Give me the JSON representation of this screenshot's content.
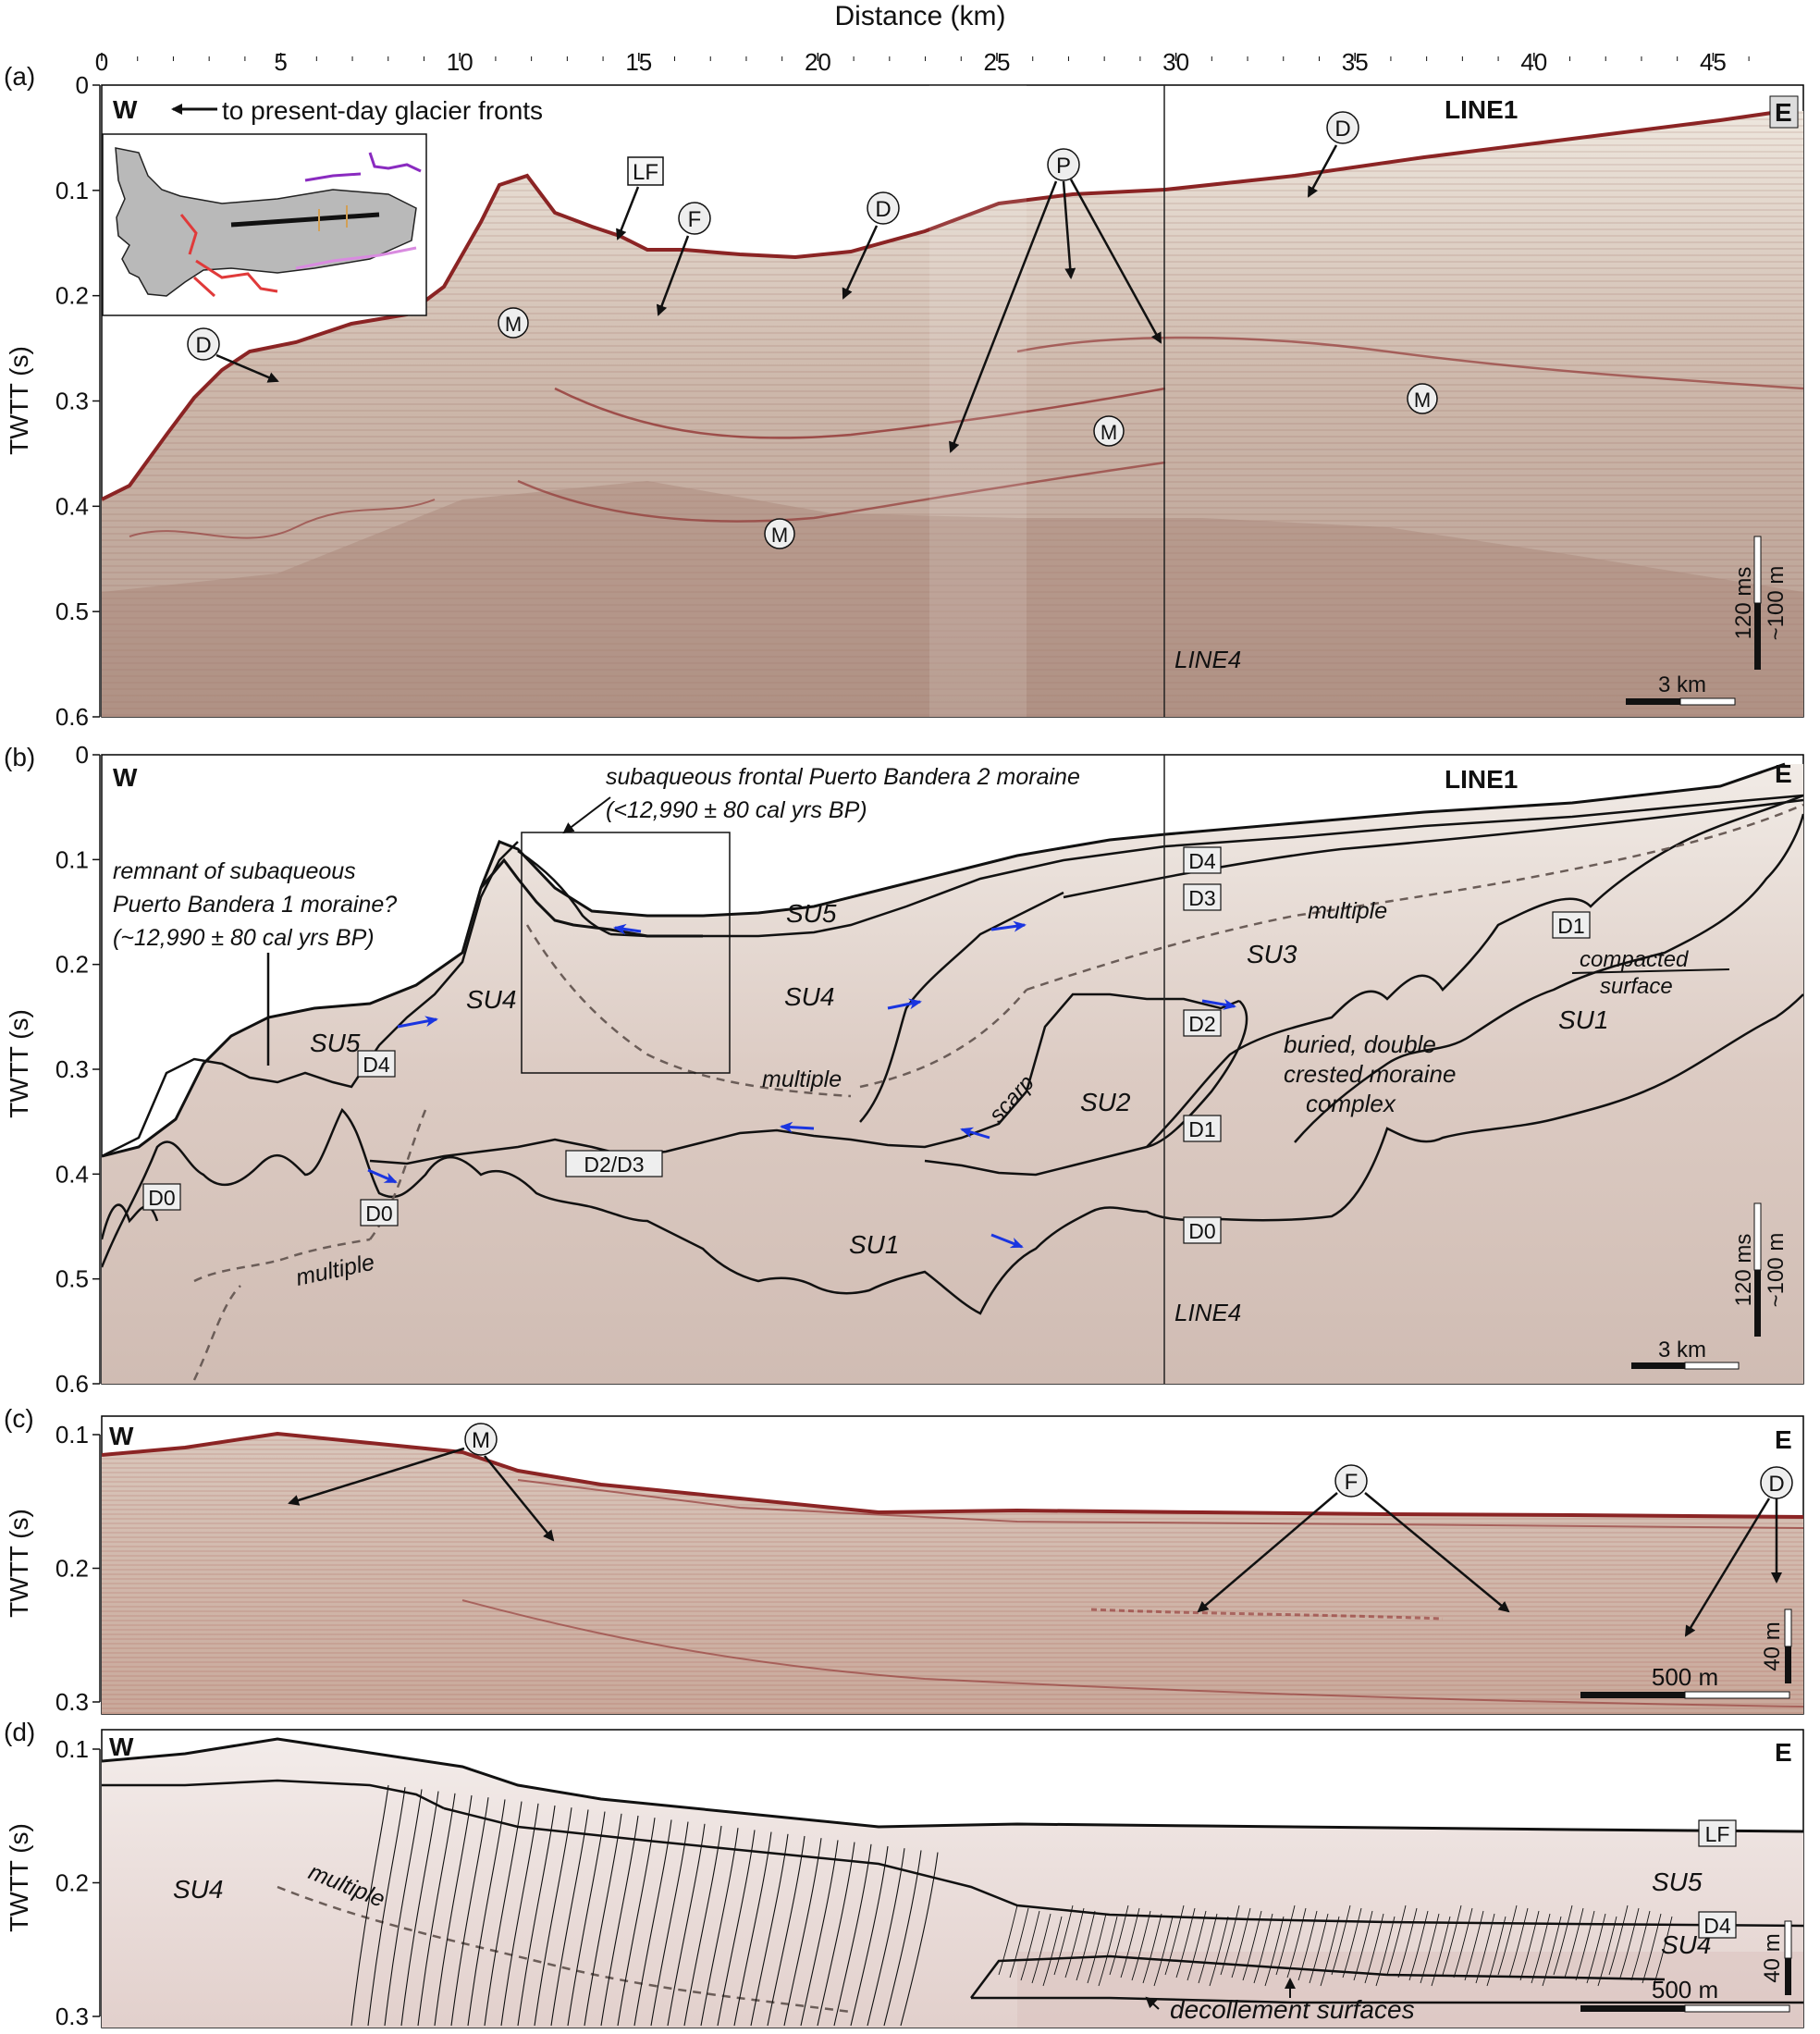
{
  "top_axis": {
    "title": "Distance (km)",
    "ticks": [
      "0",
      "5",
      "10",
      "15",
      "20",
      "25",
      "30",
      "35",
      "40",
      "45"
    ]
  },
  "panel_a": {
    "letter": "(a)",
    "ylabel": "TWTT (s)",
    "yticks": [
      "0",
      "0.1",
      "0.2",
      "0.3",
      "0.4",
      "0.5",
      "0.6"
    ],
    "west": "W",
    "east": "E",
    "west_note": "to present-day glacier fronts",
    "line_label": "LINE1",
    "crossing_line": "LINE4",
    "labels": {
      "lf": "LF",
      "d": "D",
      "f": "F",
      "p": "P",
      "m": "M"
    },
    "vscale_ms": "120 ms",
    "vscale_m": "~100 m",
    "hscale": "3 km"
  },
  "panel_b": {
    "letter": "(b)",
    "ylabel": "TWTT (s)",
    "yticks": [
      "0",
      "0.1",
      "0.2",
      "0.3",
      "0.4",
      "0.5",
      "0.6"
    ],
    "west": "W",
    "east": "E",
    "line_label": "LINE1",
    "crossing_line": "LINE4",
    "pb2_title": "subaqueous frontal Puerto Bandera 2 moraine",
    "pb2_age": "(<12,990 ± 80 cal yrs BP)",
    "pb1_l1": "remnant of subaqueous",
    "pb1_l2": "Puerto Bandera 1 moraine?",
    "pb1_l3": "(~12,990 ± 80 cal yrs BP)",
    "units": {
      "su1": "SU1",
      "su2": "SU2",
      "su3": "SU3",
      "su4": "SU4",
      "su5": "SU5"
    },
    "surfaces": {
      "d0": "D0",
      "d1": "D1",
      "d2": "D2",
      "d3": "D3",
      "d4": "D4",
      "d23": "D2/D3"
    },
    "multiple": "multiple",
    "scarp": "scarp",
    "buried_l1": "buried, double",
    "buried_l2": "crested moraine",
    "buried_l3": "complex",
    "compacted_l1": "compacted",
    "compacted_l2": "surface",
    "vscale_ms": "120 ms",
    "vscale_m": "~100 m",
    "hscale": "3 km"
  },
  "panel_c": {
    "letter": "(c)",
    "ylabel": "TWTT (s)",
    "yticks": [
      "0.1",
      "0.2",
      "0.3"
    ],
    "west": "W",
    "east": "E",
    "labels": {
      "m": "M",
      "f": "F",
      "d": "D"
    },
    "vscale": "40 m",
    "hscale": "500 m"
  },
  "panel_d": {
    "letter": "(d)",
    "ylabel": "TWTT (s)",
    "yticks": [
      "0.1",
      "0.2",
      "0.3"
    ],
    "west": "W",
    "east": "E",
    "su4": "SU4",
    "su5": "SU5",
    "lf": "LF",
    "d4": "D4",
    "multiple": "multiple",
    "decollement": "decollement surfaces",
    "vscale": "40 m",
    "hscale": "500 m"
  },
  "colors": {
    "seismic_light": "#e9e0d6",
    "seismic_mid": "#bfa79a",
    "seismic_dark": "#8e6e62",
    "reflector_red": "#9b2a2a",
    "interpretation_line": "#111111",
    "multiple_line": "#6b5d58",
    "arrow_blue": "#1a35e0",
    "inset_red": "#e03a3a",
    "inset_purple": "#8a2bc0",
    "inset_pink": "#d98be0"
  }
}
